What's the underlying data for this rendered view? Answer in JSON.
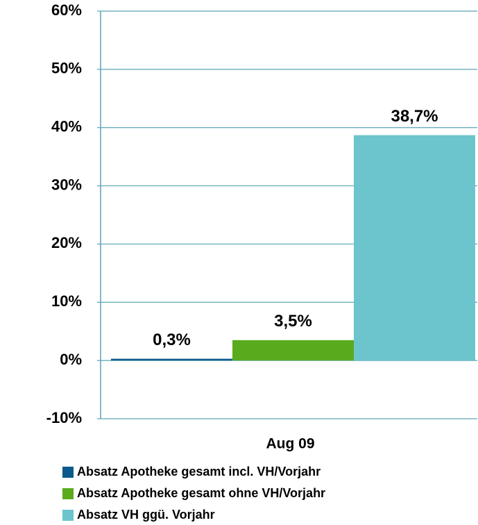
{
  "chart_data": {
    "type": "bar",
    "categories": [
      "Aug 09"
    ],
    "series": [
      {
        "name": "Absatz Apotheke gesamt incl. VH/Vorjahr",
        "color": "#0b5a8c",
        "values": [
          0.3
        ],
        "value_labels": [
          "0,3%"
        ]
      },
      {
        "name": "Absatz Apotheke gesamt ohne VH/Vorjahr",
        "color": "#5aaa1e",
        "values": [
          3.5
        ],
        "value_labels": [
          "3,5%"
        ]
      },
      {
        "name": "Absatz VH ggü. Vorjahr",
        "color": "#6cc4cc",
        "values": [
          38.7
        ],
        "value_labels": [
          "38,7%"
        ]
      }
    ],
    "ylim": [
      -10,
      60
    ],
    "yticks": [
      {
        "value": -10,
        "label": "-10%"
      },
      {
        "value": 0,
        "label": "0%"
      },
      {
        "value": 10,
        "label": "10%"
      },
      {
        "value": 20,
        "label": "20%"
      },
      {
        "value": 30,
        "label": "30%"
      },
      {
        "value": 40,
        "label": "40%"
      },
      {
        "value": 50,
        "label": "50%"
      },
      {
        "value": 60,
        "label": "60%"
      }
    ],
    "grid": true
  }
}
